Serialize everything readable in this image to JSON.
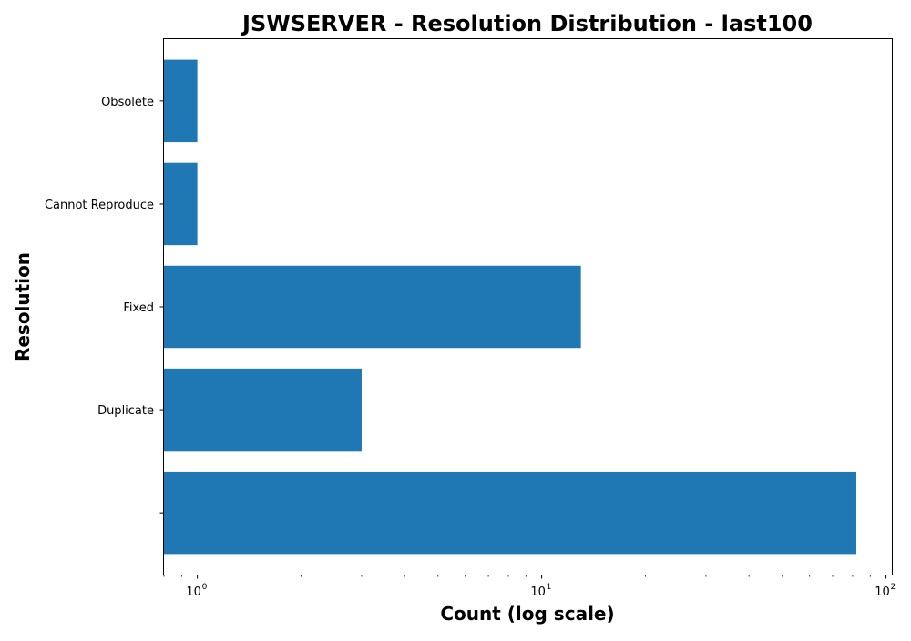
{
  "chart_data": {
    "type": "bar",
    "orientation": "horizontal",
    "title": "JSWSERVER - Resolution Distribution - last100",
    "xlabel": "Count (log scale)",
    "ylabel": "Resolution",
    "x_scale": "log",
    "xlim": [
      0.8,
      104
    ],
    "x_ticks": [
      {
        "value": 1,
        "base": "10",
        "exponent": "0"
      },
      {
        "value": 10,
        "base": "10",
        "exponent": "1"
      },
      {
        "value": 100,
        "base": "10",
        "exponent": "2"
      }
    ],
    "categories": [
      "",
      "Duplicate",
      "Fixed",
      "Cannot Reproduce",
      "Obsolete"
    ],
    "values": [
      82,
      3,
      13,
      1,
      1
    ],
    "bar_color": "#1f77b4",
    "grid": false,
    "legend": "none"
  }
}
